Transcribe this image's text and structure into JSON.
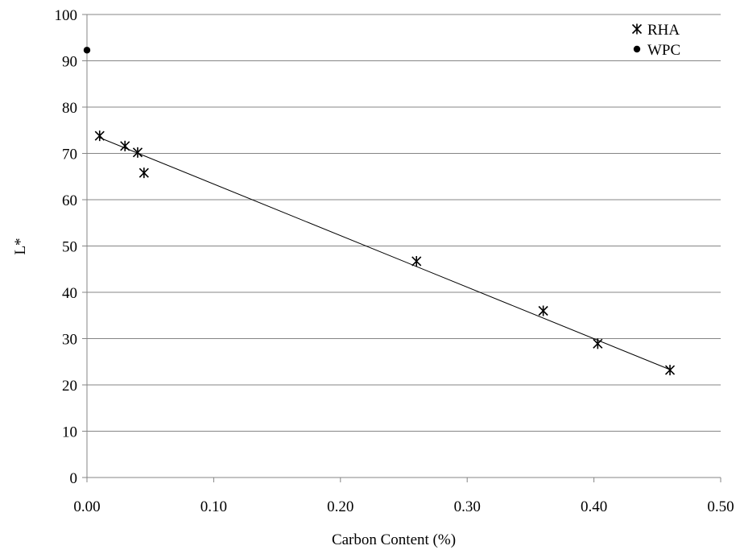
{
  "chart_data": {
    "type": "scatter",
    "title": "",
    "xlabel": "Carbon Content (%)",
    "ylabel": "L*",
    "xlim": [
      0,
      0.5
    ],
    "ylim": [
      0,
      100
    ],
    "x_ticks": [
      "0.00",
      "0.10",
      "0.20",
      "0.30",
      "0.40",
      "0.50"
    ],
    "y_ticks": [
      "0",
      "10",
      "20",
      "30",
      "40",
      "50",
      "60",
      "70",
      "80",
      "90",
      "100"
    ],
    "grid": "horizontal",
    "legend_position": "top-right",
    "series": [
      {
        "name": "RHA",
        "marker": "asterisk",
        "points": [
          {
            "x": 0.01,
            "y": 73.8
          },
          {
            "x": 0.03,
            "y": 71.6
          },
          {
            "x": 0.04,
            "y": 70.2
          },
          {
            "x": 0.045,
            "y": 65.8
          },
          {
            "x": 0.26,
            "y": 46.7
          },
          {
            "x": 0.36,
            "y": 36.0
          },
          {
            "x": 0.403,
            "y": 28.9
          },
          {
            "x": 0.46,
            "y": 23.2
          }
        ]
      },
      {
        "name": "WPC",
        "marker": "circle",
        "points": [
          {
            "x": 0.0,
            "y": 92.3
          }
        ]
      }
    ],
    "trendline": {
      "series": "RHA",
      "type": "linear",
      "x_range": [
        0.01,
        0.46
      ],
      "y_at_start": 73.4,
      "y_at_end": 23.3
    },
    "colors": {
      "marks": "#000000",
      "grid": "#858585",
      "axis": "#858585"
    }
  }
}
